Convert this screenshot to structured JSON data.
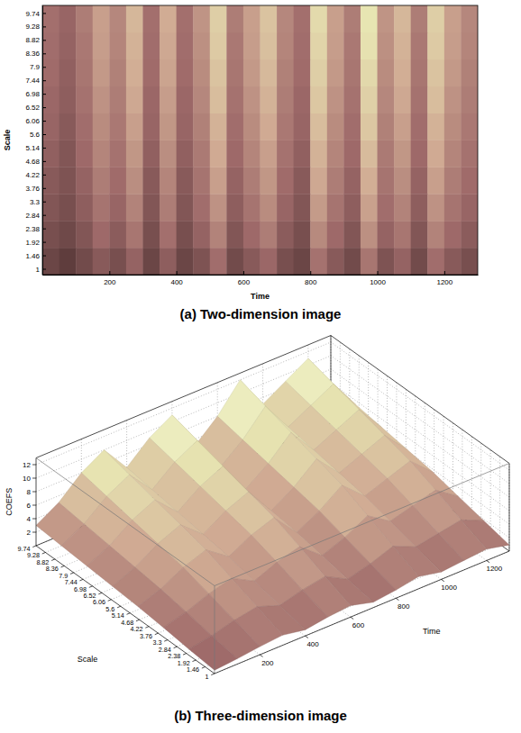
{
  "chart_data": [
    {
      "type": "heatmap",
      "title": "(a) Two-dimension image",
      "x_label": "Time",
      "y_label": "Scale",
      "color": "pink",
      "xlim": [
        0,
        1300
      ],
      "ylim": [
        0.8,
        10
      ],
      "zlim": [
        0,
        12
      ],
      "xticks": [
        200,
        400,
        600,
        800,
        1000,
        1200
      ],
      "yticks": [
        1,
        1.46,
        1.92,
        2.38,
        2.84,
        3.3,
        3.76,
        4.22,
        4.68,
        5.14,
        5.6,
        6.06,
        6.52,
        6.98,
        7.44,
        7.9,
        8.36,
        8.82,
        9.28,
        9.74
      ],
      "x": [
        25,
        75,
        125,
        175,
        225,
        275,
        325,
        375,
        425,
        475,
        525,
        575,
        625,
        675,
        725,
        775,
        825,
        875,
        925,
        975,
        1025,
        1075,
        1125,
        1175,
        1225,
        1275
      ],
      "y": [
        1.26,
        2.18,
        3.1,
        4.02,
        4.94,
        5.86,
        6.78,
        7.7,
        8.62,
        9.54
      ],
      "cells": [
        [
          1.4,
          1.1,
          1.6,
          2.3,
          1.8,
          2.7,
          1.4,
          2.5,
          1.4,
          2.0,
          3.2,
          1.6,
          2.3,
          2.9,
          1.8,
          1.4,
          3.4,
          2.3,
          1.6,
          3.6,
          2.0,
          2.7,
          1.6,
          3.2,
          2.3,
          1.8
        ],
        [
          1.8,
          1.5,
          2.1,
          3.0,
          2.4,
          3.6,
          1.8,
          3.3,
          1.8,
          2.7,
          4.2,
          2.1,
          3.0,
          3.9,
          2.4,
          1.8,
          4.5,
          3.0,
          2.1,
          4.8,
          2.7,
          3.6,
          2.1,
          4.2,
          3.0,
          2.4
        ],
        [
          2.1,
          1.8,
          2.5,
          3.5,
          2.8,
          4.2,
          2.1,
          3.9,
          2.1,
          3.2,
          4.9,
          2.5,
          3.5,
          4.6,
          2.8,
          2.1,
          5.3,
          3.5,
          2.5,
          5.6,
          3.2,
          4.2,
          2.5,
          4.9,
          3.5,
          2.8
        ],
        [
          2.3,
          2.0,
          2.7,
          3.9,
          3.1,
          4.7,
          2.3,
          4.3,
          2.3,
          3.5,
          5.5,
          2.7,
          3.9,
          5.1,
          3.1,
          2.3,
          5.9,
          3.9,
          2.7,
          6.2,
          3.5,
          4.7,
          2.7,
          5.5,
          3.9,
          3.1
        ],
        [
          2.6,
          2.1,
          3.0,
          4.3,
          3.4,
          5.1,
          2.6,
          4.7,
          2.6,
          3.8,
          6.0,
          3.0,
          4.3,
          5.5,
          3.4,
          2.6,
          6.4,
          4.3,
          3.0,
          6.8,
          3.8,
          5.1,
          3.0,
          6.0,
          4.3,
          3.4
        ],
        [
          2.8,
          2.3,
          3.2,
          4.6,
          3.7,
          5.5,
          2.8,
          5.1,
          2.8,
          4.1,
          6.4,
          3.2,
          4.6,
          6.0,
          3.7,
          2.8,
          6.9,
          4.6,
          3.2,
          7.4,
          4.1,
          5.5,
          3.2,
          6.4,
          4.6,
          3.7
        ],
        [
          2.9,
          2.5,
          3.4,
          4.9,
          3.9,
          5.9,
          2.9,
          5.4,
          2.9,
          4.4,
          6.9,
          3.4,
          4.9,
          6.4,
          3.9,
          2.9,
          7.4,
          4.9,
          3.4,
          7.8,
          4.4,
          5.9,
          3.4,
          6.9,
          4.9,
          3.9
        ],
        [
          3.1,
          2.6,
          3.6,
          5.2,
          4.1,
          6.2,
          3.1,
          5.7,
          3.1,
          4.6,
          7.2,
          3.6,
          5.2,
          6.7,
          4.1,
          3.1,
          7.7,
          5.2,
          3.6,
          8.2,
          4.6,
          6.2,
          3.6,
          7.2,
          5.2,
          4.1
        ],
        [
          3.2,
          2.7,
          3.7,
          5.4,
          4.3,
          6.4,
          3.2,
          5.9,
          3.2,
          4.8,
          7.5,
          3.7,
          5.4,
          7.0,
          4.3,
          3.2,
          8.0,
          5.4,
          3.7,
          8.6,
          4.8,
          6.4,
          3.7,
          7.5,
          5.4,
          4.3
        ],
        [
          3.3,
          2.8,
          3.9,
          5.5,
          4.4,
          6.6,
          3.3,
          6.1,
          3.3,
          5.0,
          7.7,
          3.9,
          5.5,
          7.2,
          4.4,
          3.3,
          8.3,
          5.5,
          3.9,
          8.8,
          5.0,
          6.6,
          3.9,
          7.7,
          5.5,
          4.4
        ]
      ]
    },
    {
      "type": "surface",
      "title": "(b) Three-dimension image",
      "x_label": "Time",
      "y_label": "Scale",
      "z_label": "COEFS",
      "color": "pink",
      "grid": true,
      "xlim": [
        0,
        1300
      ],
      "ylim": [
        1,
        9.74
      ],
      "zlim": [
        0,
        13
      ],
      "xticks": [
        200,
        400,
        600,
        800,
        1000,
        1200
      ],
      "yticks": [
        1,
        1.46,
        1.92,
        2.38,
        2.84,
        3.3,
        3.76,
        4.22,
        4.68,
        5.14,
        5.6,
        6.06,
        6.52,
        6.98,
        7.44,
        7.9,
        8.36,
        8.82,
        9.28,
        9.74
      ],
      "zticks": [
        2,
        4,
        6,
        8,
        10,
        12
      ],
      "x": [
        0,
        100,
        200,
        300,
        400,
        500,
        600,
        700,
        800,
        900,
        1000,
        1100,
        1200,
        1300
      ],
      "y": [
        1,
        2.25,
        3.5,
        4.75,
        6,
        7.25,
        8.5,
        9.74
      ],
      "cells": [
        [
          0.5,
          0.8,
          1.2,
          1.5,
          0.9,
          1.4,
          1.7,
          0.8,
          1.2,
          1.8,
          1.1,
          1.4,
          1.7,
          0.9
        ],
        [
          0.9,
          1.5,
          2.4,
          3.0,
          1.8,
          2.7,
          3.3,
          1.5,
          2.4,
          3.6,
          2.1,
          2.7,
          3.3,
          1.8
        ],
        [
          1.4,
          2.3,
          3.6,
          4.5,
          2.7,
          4.1,
          5.0,
          2.3,
          3.6,
          5.4,
          3.2,
          4.1,
          5.0,
          2.7
        ],
        [
          1.8,
          3.0,
          4.8,
          6.0,
          3.6,
          5.4,
          6.6,
          3.0,
          4.8,
          7.2,
          4.2,
          5.4,
          6.6,
          3.6
        ],
        [
          2.1,
          3.5,
          5.6,
          7.0,
          4.2,
          6.3,
          7.7,
          3.5,
          5.6,
          8.4,
          4.9,
          6.3,
          7.7,
          4.2
        ],
        [
          2.4,
          4.0,
          6.4,
          8.0,
          4.8,
          7.2,
          8.8,
          4.0,
          6.4,
          9.6,
          5.6,
          7.2,
          8.8,
          4.8
        ],
        [
          2.7,
          4.5,
          7.2,
          9.0,
          5.4,
          8.1,
          9.9,
          4.5,
          7.2,
          10.8,
          6.3,
          8.1,
          9.9,
          5.4
        ],
        [
          3,
          5,
          8,
          10,
          6,
          9,
          11,
          5,
          8,
          12,
          7,
          9,
          11,
          6
        ]
      ]
    }
  ]
}
